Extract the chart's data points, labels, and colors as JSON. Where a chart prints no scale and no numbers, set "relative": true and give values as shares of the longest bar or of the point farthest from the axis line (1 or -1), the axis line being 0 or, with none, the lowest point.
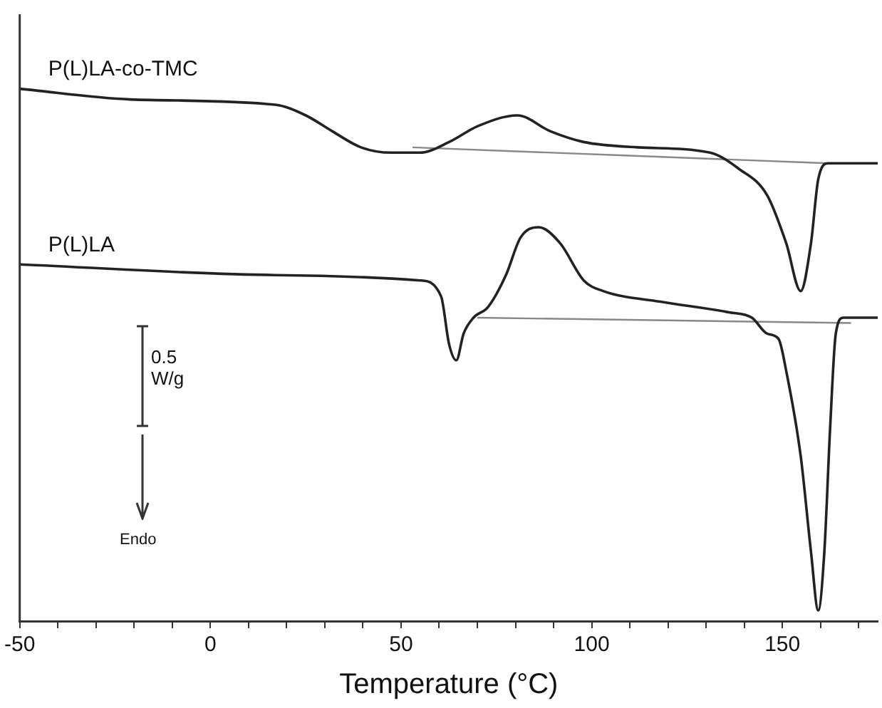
{
  "chart_data": {
    "type": "line",
    "relative": true,
    "xlabel": "Temperature (°C)",
    "xlim": [
      -50,
      175
    ],
    "xticks": [
      -50,
      {
        "value": -40,
        "label": null
      },
      {
        "value": -30,
        "label": null
      },
      {
        "value": -20,
        "label": null
      },
      {
        "value": -10,
        "label": null
      },
      0,
      {
        "value": 10,
        "label": null
      },
      {
        "value": 20,
        "label": null
      },
      {
        "value": 30,
        "label": null
      },
      {
        "value": 40,
        "label": null
      },
      50,
      {
        "value": 60,
        "label": null
      },
      {
        "value": 70,
        "label": null
      },
      {
        "value": 80,
        "label": null
      },
      {
        "value": 90,
        "label": null
      },
      100,
      {
        "value": 110,
        "label": null
      },
      {
        "value": 120,
        "label": null
      },
      {
        "value": 130,
        "label": null
      },
      {
        "value": 140,
        "label": null
      },
      150,
      {
        "value": 160,
        "label": null
      },
      {
        "value": 170,
        "label": null
      }
    ],
    "grid": false,
    "legend": false,
    "marker": "none",
    "line_style": "solid",
    "annotations": [
      "0.5 W/g",
      "Endo"
    ],
    "series": [
      {
        "name": "P(L)LA-co-TMC",
        "color": "#222222",
        "x": [
          -50,
          -21,
          17,
          25,
          32,
          39.5,
          47.4,
          55,
          62.6,
          70.2,
          80.5,
          89.2,
          97.9,
          112,
          131,
          138.5,
          146,
          151,
          154.8,
          157.5,
          159.4,
          162,
          175
        ],
        "values": [
          1.0,
          0.98,
          0.97,
          0.95,
          0.92,
          0.89,
          0.88,
          0.88,
          0.9,
          0.93,
          0.95,
          0.92,
          0.9,
          0.89,
          0.88,
          0.85,
          0.8,
          0.71,
          0.62,
          0.71,
          0.83,
          0.86,
          0.86
        ]
      },
      {
        "name": "P(L)LA",
        "color": "#222222",
        "x": [
          -50,
          17,
          55,
          60.5,
          62.6,
          64.5,
          66.4,
          69,
          72.8,
          77.5,
          81.3,
          86,
          91.7,
          97.9,
          103,
          118,
          136,
          142,
          146,
          149,
          151,
          154.8,
          157.5,
          159.4,
          161,
          162.5,
          164,
          166,
          175
        ],
        "values": [
          0.67,
          0.65,
          0.64,
          0.61,
          0.52,
          0.49,
          0.54,
          0.57,
          0.59,
          0.65,
          0.72,
          0.74,
          0.71,
          0.64,
          0.62,
          0.6,
          0.58,
          0.57,
          0.54,
          0.53,
          0.47,
          0.31,
          0.13,
          0.02,
          0.13,
          0.36,
          0.54,
          0.57,
          0.57
        ]
      },
      {
        "color": "#888888",
        "x": [
          53,
          162
        ],
        "values": [
          0.89,
          0.86
        ]
      },
      {
        "color": "#888888",
        "x": [
          70,
          168
        ],
        "values": [
          0.57,
          0.56
        ]
      }
    ]
  }
}
